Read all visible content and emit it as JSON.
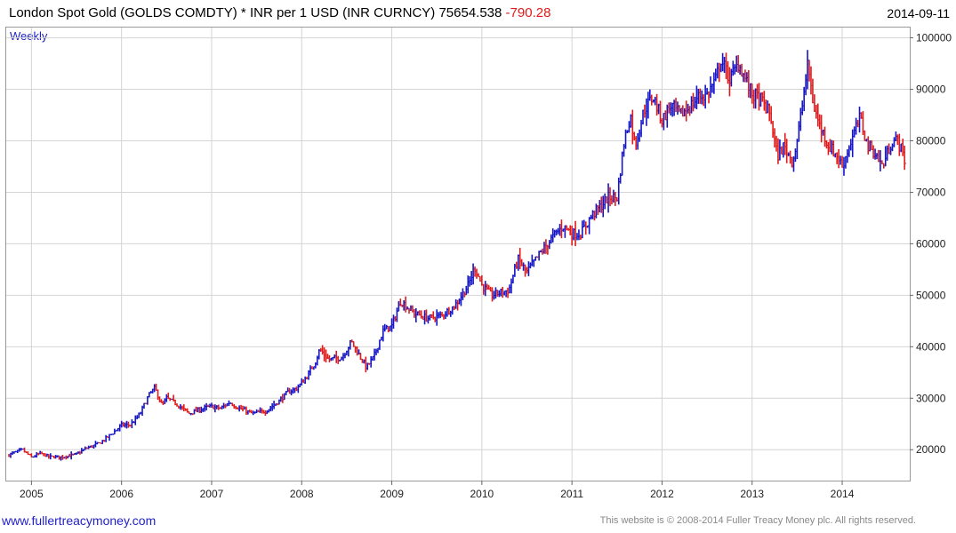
{
  "header": {
    "title": "London Spot Gold (GOLDS COMDTY) * INR per 1 USD (INR CURNCY) 75654.538",
    "change": "-790.28",
    "date": "2014-09-11"
  },
  "period_label": "Weekly",
  "footer": {
    "site": "www.fullertreacymoney.com",
    "copyright": "This website is © 2008-2014 Fuller Treacy Money plc. All rights reserved."
  },
  "colors": {
    "up": "#1414c8",
    "down": "#e01a1a",
    "grid": "#d4d4d4",
    "frame": "#9a9a9a"
  },
  "chart_data": {
    "type": "line",
    "subtype": "weekly hi-lo bars, blue rising / red falling",
    "title": "London Spot Gold (GOLDS COMDTY) * INR per 1 USD (INR CURNCY)",
    "last_value": 75654.538,
    "change": -790.28,
    "yaxis_side": "right",
    "ylim": [
      14000,
      102000
    ],
    "yticks": [
      20000,
      30000,
      40000,
      50000,
      60000,
      70000,
      80000,
      90000,
      100000
    ],
    "ytick_labels": [
      "20000",
      "30000",
      "40000",
      "50000",
      "60000",
      "70000",
      "80000",
      "90000",
      "100000"
    ],
    "xlim": [
      2004.72,
      2014.75
    ],
    "xticks": [
      2005,
      2006,
      2007,
      2008,
      2009,
      2010,
      2011,
      2012,
      2013,
      2014
    ],
    "xtick_labels": [
      "2005",
      "2006",
      "2007",
      "2008",
      "2009",
      "2010",
      "2011",
      "2012",
      "2013",
      "2014"
    ],
    "grid": true,
    "series": [
      {
        "x": [
          2004.75,
          2004.9,
          2005.0,
          2005.1,
          2005.2,
          2005.35,
          2005.5,
          2005.6,
          2005.75,
          2005.9,
          2006.0,
          2006.1,
          2006.2,
          2006.3,
          2006.37,
          2006.45,
          2006.5,
          2006.6,
          2006.75,
          2006.9,
          2007.0,
          2007.1,
          2007.2,
          2007.3,
          2007.45,
          2007.6,
          2007.75,
          2007.85,
          2007.95,
          2008.05,
          2008.15,
          2008.2,
          2008.3,
          2008.45,
          2008.55,
          2008.65,
          2008.72,
          2008.8,
          2008.9,
          2009.0,
          2009.1,
          2009.15,
          2009.25,
          2009.4,
          2009.55,
          2009.7,
          2009.85,
          2009.92,
          2010.0,
          2010.1,
          2010.2,
          2010.3,
          2010.4,
          2010.5,
          2010.6,
          2010.75,
          2010.9,
          2011.0,
          2011.1,
          2011.2,
          2011.3,
          2011.4,
          2011.5,
          2011.58,
          2011.65,
          2011.7,
          2011.8,
          2011.9,
          2012.0,
          2012.1,
          2012.2,
          2012.3,
          2012.4,
          2012.5,
          2012.6,
          2012.65,
          2012.75,
          2012.85,
          2012.95,
          2013.0,
          2013.1,
          2013.2,
          2013.28,
          2013.35,
          2013.45,
          2013.5,
          2013.55,
          2013.62,
          2013.68,
          2013.75,
          2013.85,
          2013.95,
          2014.0,
          2014.1,
          2014.2,
          2014.28,
          2014.35,
          2014.45,
          2014.55,
          2014.62,
          2014.7
        ],
        "y": [
          19000,
          20000,
          18500,
          19300,
          18600,
          18600,
          19100,
          20200,
          21200,
          23200,
          24800,
          24800,
          26800,
          30500,
          32000,
          28500,
          30000,
          29000,
          27000,
          28000,
          28400,
          28000,
          29200,
          28100,
          27000,
          27500,
          29500,
          31200,
          32000,
          34000,
          37000,
          39500,
          37500,
          38000,
          41000,
          38000,
          36000,
          38000,
          43000,
          44000,
          49000,
          48000,
          46500,
          45500,
          46000,
          48000,
          52000,
          55500,
          52000,
          50000,
          50500,
          51000,
          57000,
          54500,
          57000,
          60500,
          63500,
          62000,
          62000,
          65000,
          67000,
          69000,
          69000,
          80000,
          85000,
          79000,
          86000,
          88500,
          84000,
          87000,
          85000,
          86500,
          88500,
          89000,
          92000,
          96000,
          92000,
          95000,
          91000,
          89000,
          88000,
          85000,
          77000,
          79000,
          76000,
          80000,
          86000,
          95000,
          87000,
          83000,
          79000,
          77000,
          75000,
          80000,
          84500,
          79000,
          78000,
          75000,
          80000,
          80000,
          76000
        ]
      }
    ]
  }
}
